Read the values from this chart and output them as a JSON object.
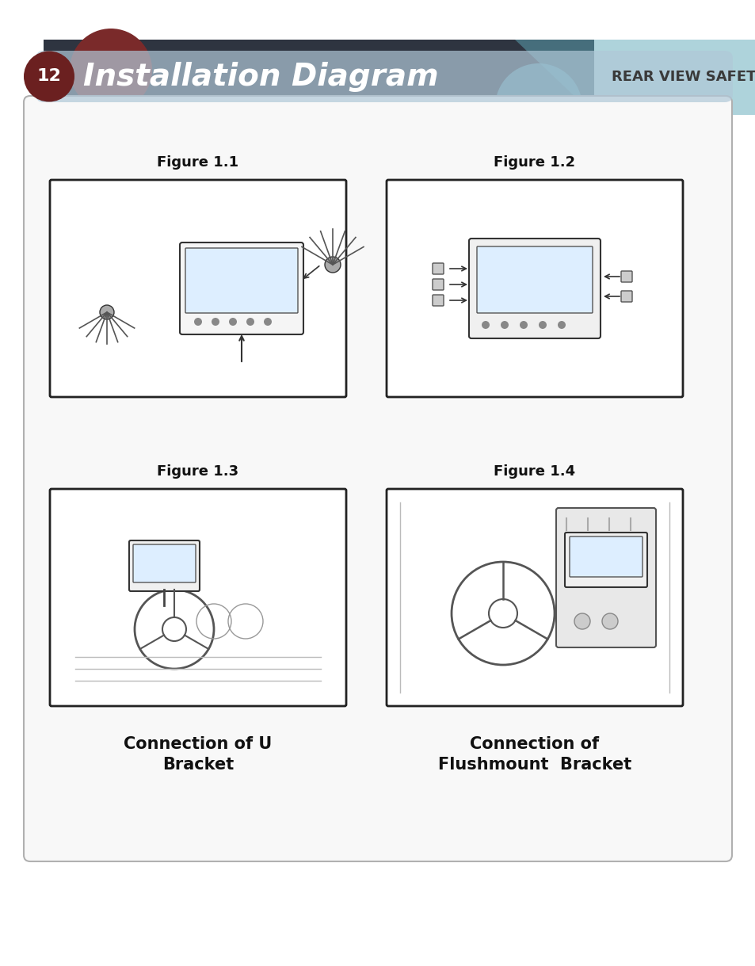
{
  "title": "Installation Diagram",
  "page_number": "12",
  "footer_text": "REAR VIEW SAFETY",
  "background_color": "#ffffff",
  "header_bg_color": "#2e3440",
  "header_accent1": "#7a2a2a",
  "header_accent2": "#5fa8b8",
  "header_text_color": "#ffffff",
  "footer_bar_color_left": "#b0c8d8",
  "footer_bar_color_right": "#e8f0f5",
  "footer_circle_color": "#6b2020",
  "fig_labels": [
    "Figure 1.1",
    "Figure 1.2",
    "Figure 1.3",
    "Figure 1.4"
  ],
  "captions": [
    "Connection of U\nBracket",
    "Connection of\nFlushmount  Bracket"
  ],
  "content_box_color": "#f0f0f0",
  "content_box_border": "#b0b0b0"
}
